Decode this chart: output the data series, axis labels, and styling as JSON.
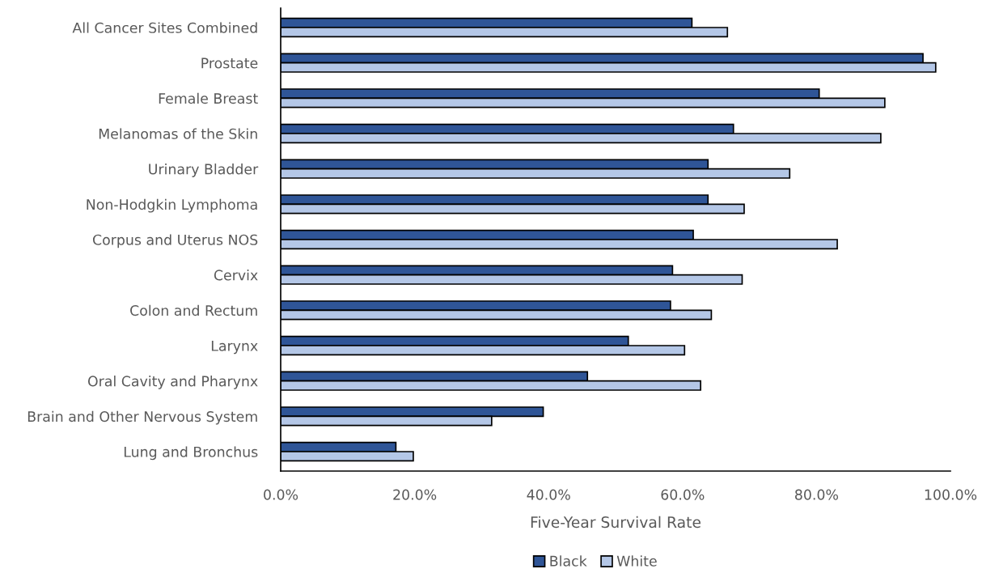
{
  "chart_data": {
    "type": "bar",
    "orientation": "horizontal",
    "xlabel": "Five-Year Survival Rate",
    "categories": [
      "All Cancer Sites Combined",
      "Prostate",
      "Female Breast",
      "Melanomas of the Skin",
      "Urinary Bladder",
      "Non-Hodgkin Lymphoma",
      "Corpus and Uterus NOS",
      "Cervix",
      "Colon and Rectum",
      "Larynx",
      "Oral Cavity and Pharynx",
      "Brain and Other Nervous System",
      "Lung and Bronchus"
    ],
    "series": [
      {
        "name": "Black",
        "color": "#2f5597",
        "values": [
          61.4,
          95.9,
          80.4,
          67.6,
          63.8,
          63.8,
          61.6,
          58.5,
          58.2,
          51.9,
          45.8,
          39.2,
          17.2
        ]
      },
      {
        "name": "White",
        "color": "#b4c7e7",
        "values": [
          66.7,
          97.8,
          90.2,
          89.6,
          76.0,
          69.2,
          83.1,
          68.9,
          64.3,
          60.3,
          62.7,
          31.5,
          19.8
        ]
      }
    ],
    "xlim": [
      0,
      100
    ],
    "xticks": [
      {
        "value": 0,
        "label": "0.0%"
      },
      {
        "value": 20,
        "label": "20.0%"
      },
      {
        "value": 40,
        "label": "40.0%"
      },
      {
        "value": 60,
        "label": "60.0%"
      },
      {
        "value": 80,
        "label": "80.0%"
      },
      {
        "value": 100,
        "label": "100.0%"
      }
    ],
    "grid": false,
    "legend": "bottom"
  }
}
